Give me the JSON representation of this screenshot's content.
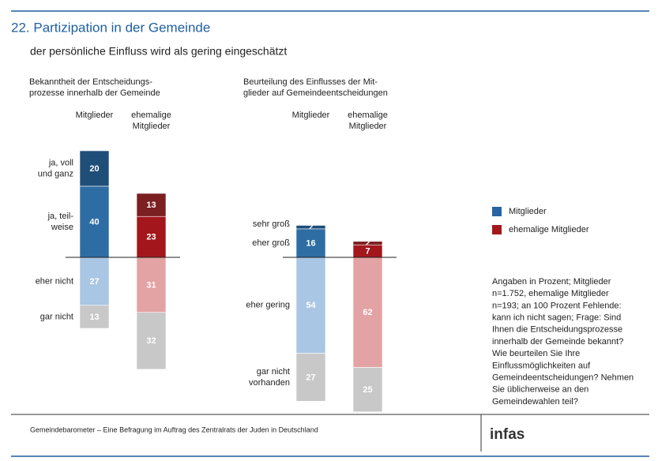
{
  "title": "22. Partizipation in der Gemeinde",
  "subtitle": "der persönliche Einfluss wird als gering eingeschätzt",
  "legend": [
    {
      "name": "Mitglieder",
      "color": "#2664a3"
    },
    {
      "name": "ehemalige Mitglieder",
      "color": "#a3171c"
    }
  ],
  "note": [
    "Angaben in Prozent; Mitglieder",
    "n=1.752, ehemalige Mitglieder",
    "n=193; an 100 Prozent Fehlende:",
    "kann ich nicht sagen; Frage: Sind",
    "Ihnen die Entscheidungsprozesse",
    "innerhalb der Gemeinde bekannt?",
    "Wie beurteilen Sie Ihre",
    "Einflussmöglichkeiten auf",
    "Gemeindeentscheidungen? Nehmen",
    "Sie üblicherweise an den",
    "Gemeindewahlen teil?"
  ],
  "footer": "Gemeindebarometer – Eine Befragung im Auftrag des Zentralrats der Juden in Deutschland",
  "logo": "infas",
  "chart_data": [
    {
      "type": "diverging_bar",
      "title": [
        "Bekanntheit der Entscheidungs-",
        "prozesse innerhalb der Gemeinde"
      ],
      "columns": [
        [
          "Mitglieder"
        ],
        [
          "ehemalige",
          "Mitglieder"
        ]
      ],
      "categories": [
        [
          "ja, voll",
          "und ganz"
        ],
        [
          "ja, teil-",
          "weise"
        ],
        [
          "eher nicht"
        ],
        [
          "gar nicht"
        ]
      ],
      "above": 2,
      "series": [
        {
          "colors": [
            "#1f4e79",
            "#2e6da4",
            "#a9c6e4",
            "#c8c8c8"
          ],
          "values": [
            20,
            40,
            27,
            13
          ]
        },
        {
          "colors": [
            "#7b1f22",
            "#a3171c",
            "#e3a2a3",
            "#c8c8c8"
          ],
          "values": [
            13,
            23,
            31,
            32
          ]
        }
      ]
    },
    {
      "type": "diverging_bar",
      "title": [
        "Beurteilung des Einflusses der Mit-",
        "glieder auf Gemeindeentscheidungen"
      ],
      "columns": [
        [
          "Mitglieder"
        ],
        [
          "ehemalige",
          "Mitglieder"
        ]
      ],
      "categories": [
        [
          "sehr groß"
        ],
        [
          "eher groß"
        ],
        [
          "eher gering"
        ],
        [
          "gar nicht",
          "vorhanden"
        ]
      ],
      "above": 2,
      "series": [
        {
          "colors": [
            "#1f4e79",
            "#2e6da4",
            "#a9c6e4",
            "#c8c8c8"
          ],
          "values": [
            2,
            16,
            54,
            27
          ]
        },
        {
          "colors": [
            "#7b1f22",
            "#a3171c",
            "#e3a2a3",
            "#c8c8c8"
          ],
          "values": [
            2,
            7,
            62,
            25
          ]
        }
      ]
    }
  ]
}
